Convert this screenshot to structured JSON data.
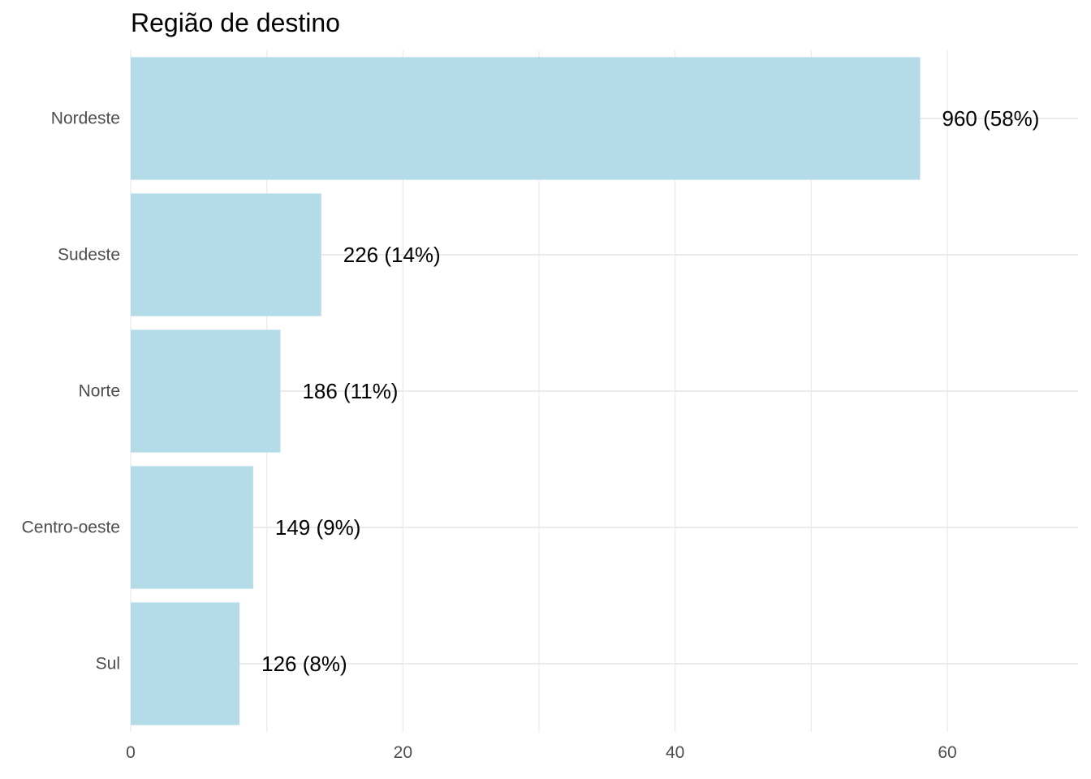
{
  "chart_data": {
    "type": "bar",
    "orientation": "horizontal",
    "title": "Região de destino",
    "xlabel": "",
    "ylabel": "",
    "categories": [
      "Nordeste",
      "Sudeste",
      "Norte",
      "Centro-oeste",
      "Sul"
    ],
    "values": [
      58,
      14,
      11,
      9,
      8
    ],
    "data_labels": [
      "960 (58%)",
      "226 (14%)",
      "186 (11%)",
      "149 (9%)",
      "126 (8%)"
    ],
    "xlim": [
      0,
      69.6
    ],
    "x_ticks": [
      0,
      20,
      40,
      60
    ],
    "x_tick_labels": [
      "0",
      "20",
      "40",
      "60"
    ],
    "grid": true,
    "legend": "none",
    "bar_color": "#b5dbe8"
  }
}
